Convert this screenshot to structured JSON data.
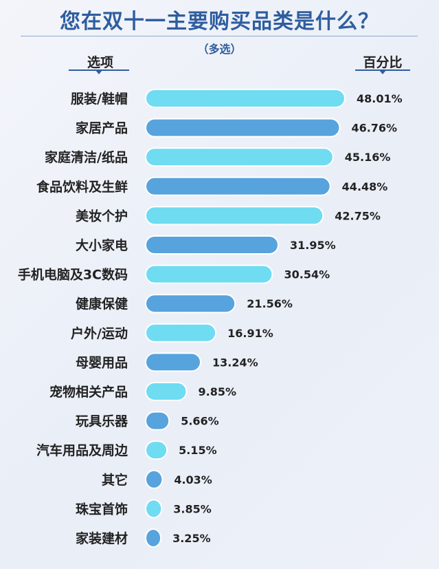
{
  "header": {
    "title": "您在双十一主要购买品类是什么？",
    "subtitle": "（多选）",
    "left_column": "选项",
    "right_column": "百分比"
  },
  "colors": {
    "light_bar": "#6fdcf2",
    "dark_bar": "#57a3dd",
    "accent": "#2f5d9f"
  },
  "chart_data": {
    "type": "bar",
    "orientation": "horizontal",
    "categories": [
      "服装/鞋帽",
      "家居产品",
      "家庭清洁/纸品",
      "食品饮料及生鲜",
      "美妆个护",
      "大小家电",
      "手机电脑及3C数码",
      "健康保健",
      "户外/运动",
      "母婴用品",
      "宠物相关产品",
      "玩具乐器",
      "汽车用品及周边",
      "其它",
      "珠宝首饰",
      "家装建材"
    ],
    "values": [
      48.01,
      46.76,
      45.16,
      44.48,
      42.75,
      31.95,
      30.54,
      21.56,
      16.91,
      13.24,
      9.85,
      5.66,
      5.15,
      4.03,
      3.85,
      3.25
    ],
    "value_labels": [
      "48.01%",
      "46.76%",
      "45.16%",
      "44.48%",
      "42.75%",
      "31.95%",
      "30.54%",
      "21.56%",
      "16.91%",
      "13.24%",
      "9.85%",
      "5.66%",
      "5.15%",
      "4.03%",
      "3.85%",
      "3.25%"
    ],
    "unit": "%",
    "grid": false,
    "title": "您在双十一主要购买品类是什么？"
  }
}
